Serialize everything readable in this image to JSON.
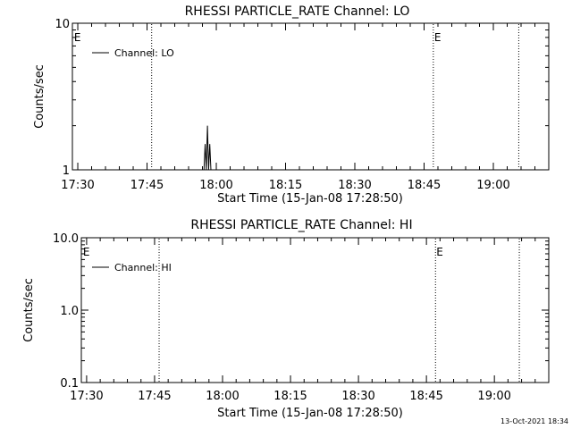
{
  "chart_data": [
    {
      "type": "line",
      "title": "RHESSI PARTICLE_RATE Channel: LO",
      "xlabel": "Start Time (15-Jan-08 17:28:50)",
      "ylabel": "Counts/sec",
      "y_scale": "log",
      "ylim": [
        1,
        10
      ],
      "xlim": [
        "17:28:50",
        "19:12:00"
      ],
      "y_ticks": [
        "1",
        "10"
      ],
      "x_ticks": [
        "17:30",
        "17:45",
        "18:00",
        "18:15",
        "18:30",
        "18:45",
        "19:00"
      ],
      "grid": false,
      "legend": {
        "position": "top-left",
        "entries": [
          "Channel: LO"
        ]
      },
      "series": [
        {
          "name": "Channel: LO",
          "color": "#000000",
          "points": [
            [
              "17:57:20",
              1.0
            ],
            [
              "17:57:35",
              1.5
            ],
            [
              "17:57:50",
              1.0
            ],
            [
              "17:58:05",
              2.0
            ],
            [
              "17:58:20",
              1.0
            ],
            [
              "17:58:35",
              1.5
            ],
            [
              "17:58:50",
              1.0
            ]
          ]
        }
      ],
      "vlines": [
        "17:46:00",
        "18:47:00",
        "19:05:30"
      ],
      "flags": [
        {
          "label": "E",
          "x": "17:29:00"
        },
        {
          "label": "E",
          "x": "18:47:00"
        }
      ]
    },
    {
      "type": "line",
      "title": "RHESSI PARTICLE_RATE Channel: HI",
      "xlabel": "Start Time (15-Jan-08 17:28:50)",
      "ylabel": "Counts/sec",
      "y_scale": "log",
      "ylim": [
        0.1,
        10
      ],
      "xlim": [
        "17:28:50",
        "19:12:00"
      ],
      "y_ticks": [
        "0.1",
        "1.0",
        "10.0"
      ],
      "x_ticks": [
        "17:30",
        "17:45",
        "18:00",
        "18:15",
        "18:30",
        "18:45",
        "19:00"
      ],
      "grid": false,
      "legend": {
        "position": "top-left",
        "entries": [
          "Channel: HI"
        ]
      },
      "series": [
        {
          "name": "Channel: HI",
          "color": "#000000",
          "points": []
        }
      ],
      "vlines": [
        "17:46:00",
        "18:47:00",
        "19:05:30"
      ],
      "flags": [
        {
          "label": "E",
          "x": "17:29:00"
        },
        {
          "label": "E",
          "x": "18:47:00"
        }
      ]
    }
  ],
  "timestamp": "13-Oct-2021 18:34"
}
